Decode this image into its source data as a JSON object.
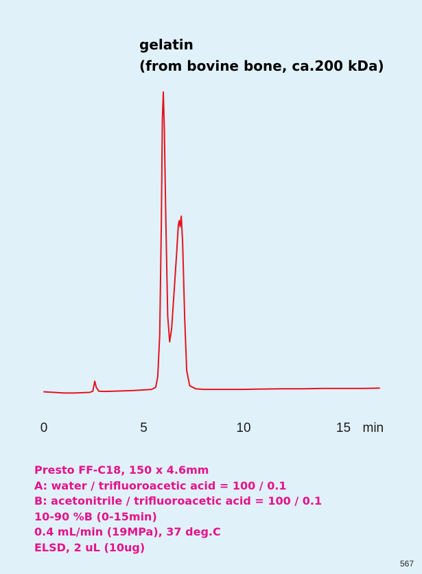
{
  "title_lines": [
    "gelatin",
    "(from bovine bone, ca.200 kDa)"
  ],
  "conditions": [
    "Presto FF-C18, 150 x 4.6mm",
    "A: water / trifluoroacetic acid = 100 / 0.1",
    "B: acetonitrile / trifluoroacetic acid = 100 / 0.1",
    "10-90 %B (0-15min)",
    "0.4 mL/min (19MPa), 37 deg.C",
    "ELSD, 2 uL (10ug)"
  ],
  "page_number": "567",
  "colors": {
    "background": "#e1f1fa",
    "trace": "#e4141e",
    "conditions_text": "#e4138c"
  },
  "chart_data": {
    "type": "line",
    "title": "gelatin (from bovine bone, ca.200 kDa)",
    "xlabel": "min",
    "ylabel": "",
    "x_ticks": [
      0,
      5,
      10,
      15
    ],
    "x_tick_labels": [
      "0",
      "5",
      "10",
      "15"
    ],
    "x_unit_label": "min",
    "xlim": [
      0,
      16.8
    ],
    "ylim": [
      0,
      1
    ],
    "grid": false,
    "series": [
      {
        "points": [
          [
            0.0,
            0.01
          ],
          [
            0.5,
            0.008
          ],
          [
            1.0,
            0.006
          ],
          [
            1.5,
            0.006
          ],
          [
            2.0,
            0.007
          ],
          [
            2.3,
            0.008
          ],
          [
            2.45,
            0.012
          ],
          [
            2.5,
            0.03
          ],
          [
            2.55,
            0.045
          ],
          [
            2.62,
            0.025
          ],
          [
            2.75,
            0.012
          ],
          [
            3.0,
            0.011
          ],
          [
            3.5,
            0.012
          ],
          [
            4.0,
            0.013
          ],
          [
            4.5,
            0.014
          ],
          [
            5.0,
            0.016
          ],
          [
            5.4,
            0.018
          ],
          [
            5.6,
            0.025
          ],
          [
            5.7,
            0.06
          ],
          [
            5.8,
            0.2
          ],
          [
            5.88,
            0.56
          ],
          [
            5.93,
            0.91
          ],
          [
            5.98,
            1.0
          ],
          [
            6.03,
            0.88
          ],
          [
            6.1,
            0.6
          ],
          [
            6.2,
            0.26
          ],
          [
            6.3,
            0.175
          ],
          [
            6.4,
            0.22
          ],
          [
            6.55,
            0.37
          ],
          [
            6.65,
            0.47
          ],
          [
            6.73,
            0.56
          ],
          [
            6.78,
            0.575
          ],
          [
            6.82,
            0.555
          ],
          [
            6.88,
            0.59
          ],
          [
            6.95,
            0.5
          ],
          [
            7.05,
            0.25
          ],
          [
            7.15,
            0.08
          ],
          [
            7.3,
            0.03
          ],
          [
            7.6,
            0.02
          ],
          [
            8.0,
            0.018
          ],
          [
            9.0,
            0.018
          ],
          [
            10.0,
            0.018
          ],
          [
            11.0,
            0.019
          ],
          [
            12.0,
            0.02
          ],
          [
            13.0,
            0.02
          ],
          [
            14.0,
            0.021
          ],
          [
            15.0,
            0.021
          ],
          [
            16.0,
            0.021
          ],
          [
            16.8,
            0.022
          ]
        ]
      }
    ]
  }
}
